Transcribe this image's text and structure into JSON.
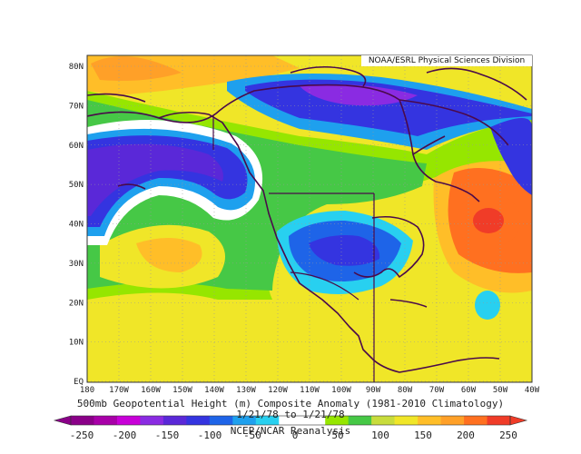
{
  "header": {
    "credit": "NOAA/ESRL Physical Sciences Division"
  },
  "map": {
    "lat_labels": [
      "80N",
      "70N",
      "60N",
      "50N",
      "40N",
      "30N",
      "20N",
      "10N",
      "EQ"
    ],
    "lon_labels": [
      "180",
      "170W",
      "160W",
      "150W",
      "140W",
      "130W",
      "120W",
      "110W",
      "100W",
      "90W",
      "80W",
      "70W",
      "60W",
      "50W",
      "40W"
    ],
    "gridlines": "dotted"
  },
  "captions": {
    "title": "500mb Geopotential Height (m) Composite Anomaly (1981-2010 Climatology)",
    "dates": "1/21/78 to 1/21/78",
    "source": "NCEP/NCAR Reanalysis"
  },
  "colorbar": {
    "labels": [
      "-250",
      "-200",
      "-150",
      "-100",
      "-50",
      "0",
      "50",
      "100",
      "150",
      "200",
      "250"
    ],
    "colors": [
      "#8a0088",
      "#a800a8",
      "#c800d8",
      "#8a2be2",
      "#5a28d8",
      "#3434e0",
      "#1e64e8",
      "#1ea0ee",
      "#28d0f0",
      "#ffffff",
      "#ffffff",
      "#96e600",
      "#46c846",
      "#c8dc3c",
      "#f0e628",
      "#ffbe28",
      "#ffa028",
      "#ff7020",
      "#f03c28"
    ]
  }
}
